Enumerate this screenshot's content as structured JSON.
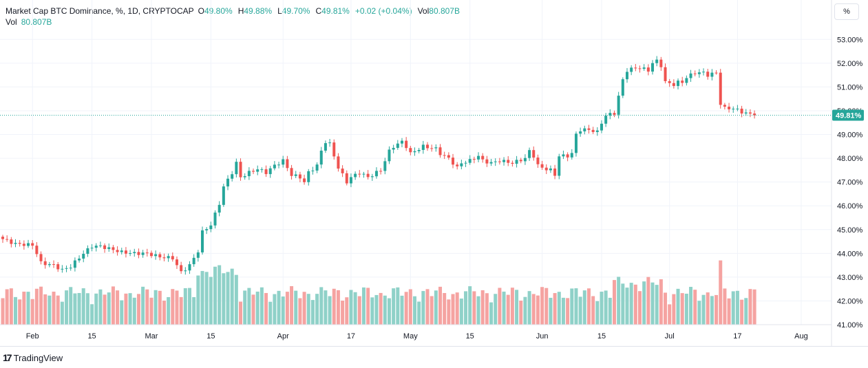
{
  "legend": {
    "symbol": "Market Cap BTC Dominance, %, 1D, CRYPTOCAP",
    "o_label": "O",
    "o_value": "49.80%",
    "h_label": "H",
    "h_value": "49.88%",
    "l_label": "L",
    "l_value": "49.70%",
    "c_label": "C",
    "c_value": "49.81%",
    "change": "+0.02 (+0.04%)",
    "vol_label": "Vol",
    "vol_value": "80.807B",
    "vol_row_label": "Vol",
    "vol_row_value": "80.807B"
  },
  "scale_button": "%",
  "last_price_label": "49.81%",
  "branding": "TradingView",
  "colors": {
    "up": "#26a69a",
    "down": "#ef5350",
    "up_vol": "#8fd1c8",
    "down_vol": "#f5a3a1",
    "grid": "#f0f3fa",
    "text": "#131722"
  },
  "chart_data": {
    "type": "candlestick",
    "title": "Market Cap BTC Dominance, %, 1D, CRYPTOCAP",
    "y_range": [
      41.0,
      53.5
    ],
    "y_ticks": [
      "53.00%",
      "52.00%",
      "51.00%",
      "50.00%",
      "49.00%",
      "48.00%",
      "47.00%",
      "46.00%",
      "45.00%",
      "44.00%",
      "43.00%",
      "42.00%",
      "41.00%"
    ],
    "x_ticks": [
      {
        "label": "Feb",
        "day": 7
      },
      {
        "label": "15",
        "day": 21
      },
      {
        "label": "Mar",
        "day": 35
      },
      {
        "label": "15",
        "day": 49
      },
      {
        "label": "Apr",
        "day": 66
      },
      {
        "label": "17",
        "day": 82
      },
      {
        "label": "May",
        "day": 96
      },
      {
        "label": "15",
        "day": 110
      },
      {
        "label": "Jun",
        "day": 127
      },
      {
        "label": "15",
        "day": 141
      },
      {
        "label": "Jul",
        "day": 157
      },
      {
        "label": "17",
        "day": 173
      },
      {
        "label": "Aug",
        "day": 188
      }
    ],
    "close_anchors": [
      [
        0,
        44.6
      ],
      [
        3,
        44.4
      ],
      [
        7,
        44.35
      ],
      [
        8,
        44.0
      ],
      [
        9,
        43.6
      ],
      [
        12,
        43.5
      ],
      [
        14,
        43.3
      ],
      [
        16,
        43.45
      ],
      [
        19,
        44.0
      ],
      [
        21,
        44.3
      ],
      [
        23,
        44.3
      ],
      [
        25,
        44.2
      ],
      [
        28,
        44.05
      ],
      [
        31,
        44.0
      ],
      [
        34,
        44.0
      ],
      [
        37,
        43.85
      ],
      [
        40,
        43.8
      ],
      [
        42,
        43.2
      ],
      [
        44,
        43.5
      ],
      [
        46,
        44.1
      ],
      [
        47,
        44.9
      ],
      [
        49,
        45.2
      ],
      [
        51,
        46.1
      ],
      [
        52,
        46.8
      ],
      [
        53,
        47.1
      ],
      [
        54,
        47.4
      ],
      [
        55,
        47.8
      ],
      [
        56,
        47.2
      ],
      [
        58,
        47.4
      ],
      [
        60,
        47.55
      ],
      [
        62,
        47.4
      ],
      [
        64,
        47.7
      ],
      [
        66,
        47.9
      ],
      [
        68,
        47.3
      ],
      [
        70,
        47.2
      ],
      [
        71,
        47.0
      ],
      [
        72,
        47.4
      ],
      [
        74,
        47.7
      ],
      [
        75,
        48.3
      ],
      [
        76,
        48.7
      ],
      [
        77,
        48.6
      ],
      [
        79,
        47.6
      ],
      [
        80,
        47.3
      ],
      [
        81,
        47.0
      ],
      [
        82,
        47.2
      ],
      [
        84,
        47.4
      ],
      [
        86,
        47.2
      ],
      [
        89,
        47.5
      ],
      [
        90,
        47.9
      ],
      [
        91,
        48.3
      ],
      [
        92,
        48.5
      ],
      [
        94,
        48.7
      ],
      [
        95,
        48.5
      ],
      [
        96,
        48.2
      ],
      [
        98,
        48.4
      ],
      [
        99,
        48.5
      ],
      [
        102,
        48.4
      ],
      [
        103,
        48.2
      ],
      [
        105,
        48.0
      ],
      [
        107,
        47.6
      ],
      [
        108,
        47.8
      ],
      [
        110,
        47.9
      ],
      [
        112,
        48.1
      ],
      [
        113,
        47.9
      ],
      [
        115,
        47.8
      ],
      [
        117,
        47.9
      ],
      [
        120,
        47.8
      ],
      [
        123,
        48.0
      ],
      [
        124,
        48.3
      ],
      [
        125,
        48.1
      ],
      [
        126,
        47.7
      ],
      [
        127,
        47.6
      ],
      [
        129,
        47.5
      ],
      [
        130,
        47.3
      ],
      [
        131,
        48.1
      ],
      [
        133,
        48.1
      ],
      [
        134,
        48.2
      ],
      [
        135,
        49.0
      ],
      [
        136,
        49.2
      ],
      [
        138,
        49.2
      ],
      [
        140,
        49.1
      ],
      [
        141,
        49.5
      ],
      [
        142,
        49.8
      ],
      [
        144,
        49.9
      ],
      [
        145,
        50.6
      ],
      [
        146,
        51.3
      ],
      [
        147,
        51.7
      ],
      [
        149,
        51.8
      ],
      [
        150,
        51.8
      ],
      [
        152,
        51.7
      ],
      [
        153,
        52.0
      ],
      [
        154,
        52.1
      ],
      [
        155,
        51.9
      ],
      [
        156,
        51.2
      ],
      [
        158,
        51.1
      ],
      [
        159,
        51.2
      ],
      [
        160,
        51.2
      ],
      [
        161,
        51.4
      ],
      [
        163,
        51.6
      ],
      [
        165,
        51.6
      ],
      [
        166,
        51.5
      ],
      [
        168,
        51.6
      ],
      [
        169,
        50.3
      ],
      [
        170,
        50.1
      ],
      [
        172,
        50.1
      ],
      [
        174,
        49.95
      ],
      [
        176,
        49.85
      ],
      [
        177,
        49.81
      ]
    ],
    "last_close": 49.81,
    "volume_note": "daily volume bars colored by candle direction, last Vol 80.807B"
  }
}
